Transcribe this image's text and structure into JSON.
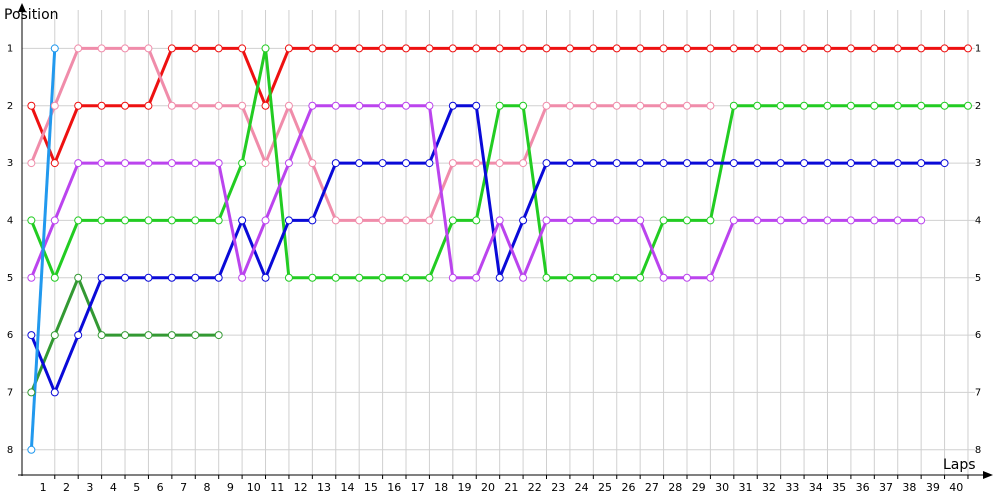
{
  "chart_data": {
    "type": "line",
    "y_label": "Position",
    "x_label": "Laps",
    "x": [
      0,
      1,
      2,
      3,
      4,
      5,
      6,
      7,
      8,
      9,
      10,
      11,
      12,
      13,
      14,
      15,
      16,
      17,
      18,
      19,
      20,
      21,
      22,
      23,
      24,
      25,
      26,
      27,
      28,
      29,
      30,
      31,
      32,
      33,
      34,
      35,
      36,
      37,
      38,
      39,
      40
    ],
    "xlim": [
      -0.4,
      40.3
    ],
    "xticks": [
      1,
      2,
      3,
      4,
      5,
      6,
      7,
      8,
      9,
      10,
      11,
      12,
      13,
      14,
      15,
      16,
      17,
      18,
      19,
      20,
      21,
      22,
      23,
      24,
      25,
      26,
      27,
      28,
      29,
      30,
      31,
      32,
      33,
      34,
      35,
      36,
      37,
      38,
      39,
      40
    ],
    "ylim": [
      8.44,
      0.33
    ],
    "yticks": [
      1,
      2,
      3,
      4,
      5,
      6,
      7,
      8
    ],
    "grid": true,
    "series": [
      {
        "color": "#ee1111",
        "values": [
          2,
          3,
          2,
          2,
          2,
          2,
          1,
          1,
          1,
          1,
          2,
          1,
          1,
          1,
          1,
          1,
          1,
          1,
          1,
          1,
          1,
          1,
          1,
          1,
          1,
          1,
          1,
          1,
          1,
          1,
          1,
          1,
          1,
          1,
          1,
          1,
          1,
          1,
          1,
          1,
          1
        ]
      },
      {
        "color": "#f08caa",
        "values": [
          3,
          2,
          1,
          1,
          1,
          1,
          2,
          2,
          2,
          2,
          3,
          2,
          3,
          4,
          4,
          4,
          4,
          4,
          3,
          3,
          3,
          3,
          2,
          2,
          2,
          2,
          2,
          2,
          2,
          2,
          null,
          null,
          null,
          null,
          null,
          null,
          null,
          null,
          null,
          null,
          null
        ]
      },
      {
        "color": "#22cc22",
        "values": [
          4,
          5,
          4,
          4,
          4,
          4,
          4,
          4,
          4,
          3,
          1,
          5,
          5,
          5,
          5,
          5,
          5,
          5,
          4,
          4,
          2,
          2,
          5,
          5,
          5,
          5,
          5,
          4,
          4,
          4,
          2,
          2,
          2,
          2,
          2,
          2,
          2,
          2,
          2,
          2,
          2
        ]
      },
      {
        "color": "#339933",
        "values": [
          7,
          6,
          5,
          6,
          6,
          6,
          6,
          6,
          6,
          null,
          null,
          null,
          null,
          null,
          null,
          null,
          null,
          null,
          null,
          null,
          null,
          null,
          null,
          null,
          null,
          null,
          null,
          null,
          null,
          null,
          null,
          null,
          null,
          null,
          null,
          null,
          null,
          null,
          null,
          null,
          null
        ]
      },
      {
        "color": "#0a0ad8",
        "values": [
          6,
          7,
          6,
          5,
          5,
          5,
          5,
          5,
          5,
          4,
          5,
          4,
          4,
          3,
          3,
          3,
          3,
          3,
          2,
          2,
          5,
          4,
          3,
          3,
          3,
          3,
          3,
          3,
          3,
          3,
          3,
          3,
          3,
          3,
          3,
          3,
          3,
          3,
          3,
          3,
          null
        ]
      },
      {
        "color": "#bb44ee",
        "values": [
          5,
          4,
          3,
          3,
          3,
          3,
          3,
          3,
          3,
          5,
          4,
          3,
          2,
          2,
          2,
          2,
          2,
          2,
          5,
          5,
          4,
          5,
          4,
          4,
          4,
          4,
          4,
          5,
          5,
          5,
          4,
          4,
          4,
          4,
          4,
          4,
          4,
          4,
          4,
          null,
          null
        ]
      },
      {
        "color": "#2299ee",
        "values": [
          8,
          1,
          null,
          null,
          null,
          null,
          null,
          null,
          null,
          null,
          null,
          null,
          null,
          null,
          null,
          null,
          null,
          null,
          null,
          null,
          null,
          null,
          null,
          null,
          null,
          null,
          null,
          null,
          null,
          null,
          null,
          null,
          null,
          null,
          null,
          null,
          null,
          null,
          null,
          null,
          null
        ]
      }
    ]
  }
}
